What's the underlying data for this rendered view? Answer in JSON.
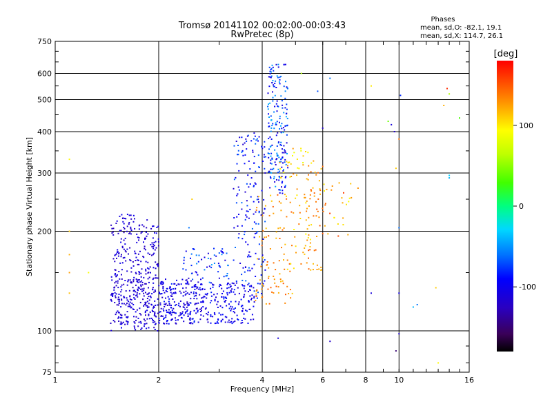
{
  "chart_data": {
    "type": "scatter",
    "title": "Tromsø 20141102 00:02:00-00:03:43",
    "subtitle": "RwPretec (8p)",
    "xlabel": "Frequency [MHz]",
    "ylabel": "Stationary phase Virtual Height [km]",
    "xscale": "log",
    "yscale": "log",
    "xlim": [
      1,
      16
    ],
    "ylim": [
      75,
      750
    ],
    "x_ticks": [
      1,
      2,
      4,
      6,
      8,
      10,
      16
    ],
    "x_tick_labels": [
      "1",
      "2",
      "4",
      "6",
      "8",
      "10",
      "16"
    ],
    "y_ticks": [
      75,
      100,
      200,
      300,
      400,
      500,
      600,
      750
    ],
    "y_tick_labels": [
      "75",
      "100",
      "200",
      "300",
      "400",
      "500",
      "600",
      "750"
    ],
    "grid": true,
    "stats": {
      "heading": "Phases",
      "line_o": "mean, sd,O: -82.1, 19.1",
      "line_x": "mean, sd,X: 114.7, 26.1"
    },
    "colorbar": {
      "label": "[deg]",
      "range": [
        -180,
        180
      ],
      "ticks": [
        100,
        0,
        -100
      ],
      "tick_labels": [
        "100",
        "0",
        "-100"
      ]
    },
    "clusters": [
      {
        "f": [
          1.45,
          2.0
        ],
        "h": [
          100,
          225
        ],
        "n": 330,
        "c": [
          -128,
          -100
        ]
      },
      {
        "f": [
          1.45,
          2.7
        ],
        "h": [
          105,
          145
        ],
        "n": 230,
        "c": [
          -125,
          -100
        ]
      },
      {
        "f": [
          2.0,
          3.8
        ],
        "h": [
          105,
          140
        ],
        "n": 300,
        "c": [
          -120,
          -80
        ]
      },
      {
        "f": [
          2.3,
          3.2
        ],
        "h": [
          140,
          178
        ],
        "n": 60,
        "c": [
          -115,
          -45
        ]
      },
      {
        "f": [
          3.3,
          4.1
        ],
        "h": [
          125,
          400
        ],
        "n": 170,
        "c": [
          -118,
          -60
        ]
      },
      {
        "f": [
          4.15,
          4.75
        ],
        "h": [
          260,
          640
        ],
        "n": 200,
        "c": [
          -120,
          -40
        ]
      },
      {
        "f": [
          3.8,
          4.9
        ],
        "h": [
          120,
          260
        ],
        "n": 90,
        "c": [
          110,
          150
        ]
      },
      {
        "f": [
          4.7,
          5.8
        ],
        "h": [
          150,
          340
        ],
        "n": 45,
        "c": [
          95,
          140
        ]
      },
      {
        "f": [
          5.3,
          6.0
        ],
        "h": [
          150,
          330
        ],
        "n": 50,
        "c": [
          110,
          150
        ]
      },
      {
        "f": [
          6.0,
          7.3
        ],
        "h": [
          190,
          280
        ],
        "n": 25,
        "c": [
          90,
          160
        ]
      },
      {
        "f": [
          4.5,
          5.6
        ],
        "h": [
          290,
          360
        ],
        "n": 25,
        "c": [
          80,
          140
        ]
      }
    ],
    "points": [
      {
        "x": 1.1,
        "y": 330,
        "c": 95
      },
      {
        "x": 1.1,
        "y": 200,
        "c": 110
      },
      {
        "x": 1.1,
        "y": 170,
        "c": 120
      },
      {
        "x": 1.1,
        "y": 150,
        "c": 125
      },
      {
        "x": 1.1,
        "y": 130,
        "c": 115
      },
      {
        "x": 1.25,
        "y": 150,
        "c": 90
      },
      {
        "x": 2.5,
        "y": 250,
        "c": 110
      },
      {
        "x": 2.45,
        "y": 205,
        "c": -60
      },
      {
        "x": 4.45,
        "y": 95,
        "c": -110
      },
      {
        "x": 5.2,
        "y": 600,
        "c": 60
      },
      {
        "x": 5.8,
        "y": 530,
        "c": -70
      },
      {
        "x": 6.0,
        "y": 410,
        "c": -120
      },
      {
        "x": 6.1,
        "y": 240,
        "c": 140
      },
      {
        "x": 6.3,
        "y": 580,
        "c": -60
      },
      {
        "x": 6.3,
        "y": 93,
        "c": -120
      },
      {
        "x": 6.7,
        "y": 280,
        "c": 120
      },
      {
        "x": 7.6,
        "y": 270,
        "c": 130
      },
      {
        "x": 8.3,
        "y": 550,
        "c": 100
      },
      {
        "x": 8.3,
        "y": 130,
        "c": -110
      },
      {
        "x": 9.3,
        "y": 430,
        "c": 40
      },
      {
        "x": 9.5,
        "y": 420,
        "c": -110
      },
      {
        "x": 9.7,
        "y": 400,
        "c": -120
      },
      {
        "x": 9.8,
        "y": 310,
        "c": 110
      },
      {
        "x": 9.8,
        "y": 87,
        "c": -150
      },
      {
        "x": 10.0,
        "y": 380,
        "c": 140
      },
      {
        "x": 10.0,
        "y": 205,
        "c": -60
      },
      {
        "x": 10.0,
        "y": 98,
        "c": -115
      },
      {
        "x": 10.1,
        "y": 515,
        "c": -80
      },
      {
        "x": 10.0,
        "y": 130,
        "c": -105
      },
      {
        "x": 11.0,
        "y": 118,
        "c": -40
      },
      {
        "x": 11.3,
        "y": 120,
        "c": -60
      },
      {
        "x": 12.8,
        "y": 135,
        "c": 110
      },
      {
        "x": 13.5,
        "y": 480,
        "c": 120
      },
      {
        "x": 13.8,
        "y": 540,
        "c": 165
      },
      {
        "x": 14.0,
        "y": 520,
        "c": 60
      },
      {
        "x": 14.0,
        "y": 290,
        "c": -40
      },
      {
        "x": 14.0,
        "y": 295,
        "c": -30
      },
      {
        "x": 15.0,
        "y": 440,
        "c": 30
      },
      {
        "x": 13.0,
        "y": 80,
        "c": 95
      }
    ]
  }
}
